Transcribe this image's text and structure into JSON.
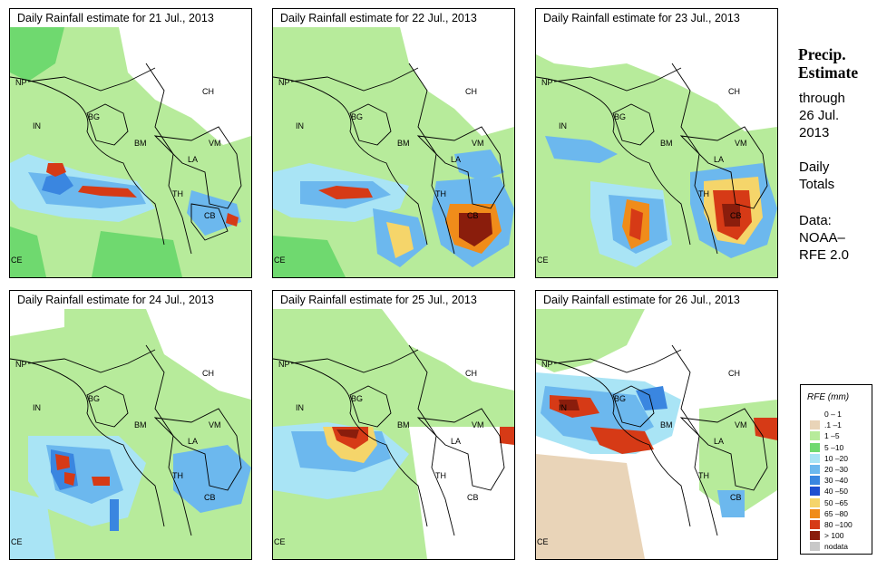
{
  "panels": [
    {
      "title": "Daily Rainfall estimate for  21 Jul., 2013",
      "labels": {
        "np": "NP",
        "in": "IN",
        "bg": "BG",
        "ch": "CH",
        "bm": "BM",
        "vm": "VM",
        "la": "LA",
        "th": "TH",
        "cb": "CB",
        "ce": "CE"
      }
    },
    {
      "title": "Daily Rainfall estimate for  22 Jul., 2013",
      "labels": {
        "np": "NP",
        "in": "IN",
        "bg": "BG",
        "ch": "CH",
        "bm": "BM",
        "vm": "VM",
        "la": "LA",
        "th": "TH",
        "cb": "CB",
        "ce": "CE"
      }
    },
    {
      "title": "Daily Rainfall estimate for  23 Jul., 2013",
      "labels": {
        "np": "NP",
        "in": "IN",
        "bg": "BG",
        "ch": "CH",
        "bm": "BM",
        "vm": "VM",
        "la": "LA",
        "th": "TH",
        "cb": "CB",
        "ce": "CE"
      }
    },
    {
      "title": "Daily Rainfall estimate for  24 Jul., 2013",
      "labels": {
        "np": "NP",
        "in": "IN",
        "bg": "BG",
        "ch": "CH",
        "bm": "BM",
        "vm": "VM",
        "la": "LA",
        "th": "TH",
        "cb": "CB",
        "ce": "CE"
      }
    },
    {
      "title": "Daily Rainfall estimate for  25 Jul., 2013",
      "labels": {
        "np": "NP",
        "in": "IN",
        "bg": "BG",
        "ch": "CH",
        "bm": "BM",
        "vm": "VM",
        "la": "LA",
        "th": "TH",
        "cb": "CB",
        "ce": "CE"
      }
    },
    {
      "title": "Daily Rainfall estimate for  26 Jul., 2013",
      "labels": {
        "np": "NP",
        "in": "IN",
        "bg": "BG",
        "ch": "CH",
        "bm": "BM",
        "vm": "VM",
        "la": "LA",
        "th": "TH",
        "cb": "CB",
        "ce": "CE"
      }
    }
  ],
  "side": {
    "title_line1": "Precip.",
    "title_line2": "Estimate",
    "through": "through",
    "date_line1": "26 Jul.",
    "date_line2": "2013",
    "daily_line1": "Daily",
    "daily_line2": "Totals",
    "data_line1": "Data:",
    "data_line2": "NOAA–",
    "data_line3": "RFE 2.0"
  },
  "legend": {
    "title": "RFE (mm)",
    "items": [
      {
        "label": "0 – 1",
        "color": "#ffffff"
      },
      {
        "label": ".1 –1",
        "color": "#e9d4b8"
      },
      {
        "label": "1 –5",
        "color": "#b7eb9b"
      },
      {
        "label": "5 –10",
        "color": "#6fd96f"
      },
      {
        "label": "10 –20",
        "color": "#a9e4f5"
      },
      {
        "label": "20 –30",
        "color": "#6cb8ee"
      },
      {
        "label": "30 –40",
        "color": "#3a86e0"
      },
      {
        "label": "40 –50",
        "color": "#1f4fd0"
      },
      {
        "label": "50 –65",
        "color": "#f5d56a"
      },
      {
        "label": "65 –80",
        "color": "#f08c1a"
      },
      {
        "label": "80 –100",
        "color": "#d63a16"
      },
      {
        "label": "> 100",
        "color": "#8a1d0c"
      },
      {
        "label": "nodata",
        "color": "#c8c8c8"
      }
    ]
  },
  "colors": {
    "trace": "#e9d4b8",
    "light": "#b7eb9b",
    "green": "#6fd96f",
    "cyan": "#a9e4f5",
    "ltblue": "#6cb8ee",
    "blue": "#3a86e0",
    "dkblue": "#1f4fd0",
    "yellow": "#f5d56a",
    "orange": "#f08c1a",
    "red": "#d63a16",
    "maroon": "#8a1d0c"
  }
}
